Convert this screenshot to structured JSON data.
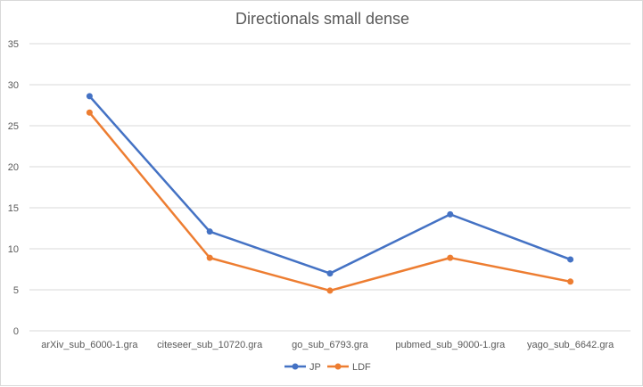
{
  "chart_data": {
    "type": "line",
    "title": "Directionals small dense",
    "categories": [
      "arXiv_sub_6000-1.gra",
      "citeseer_sub_10720.gra",
      "go_sub_6793.gra",
      "pubmed_sub_9000-1.gra",
      "yago_sub_6642.gra"
    ],
    "series": [
      {
        "name": "JP",
        "values": [
          28.6,
          12.1,
          7.0,
          14.2,
          8.7
        ],
        "color": "#4472C4"
      },
      {
        "name": "LDF",
        "values": [
          26.6,
          8.9,
          4.9,
          8.9,
          6.0
        ],
        "color": "#ED7D31"
      }
    ],
    "ylim": [
      0,
      35
    ],
    "yticks": [
      0,
      5,
      10,
      15,
      20,
      25,
      30,
      35
    ],
    "grid": true,
    "legend": "bottom",
    "gridColor": "#d9d9d9"
  }
}
